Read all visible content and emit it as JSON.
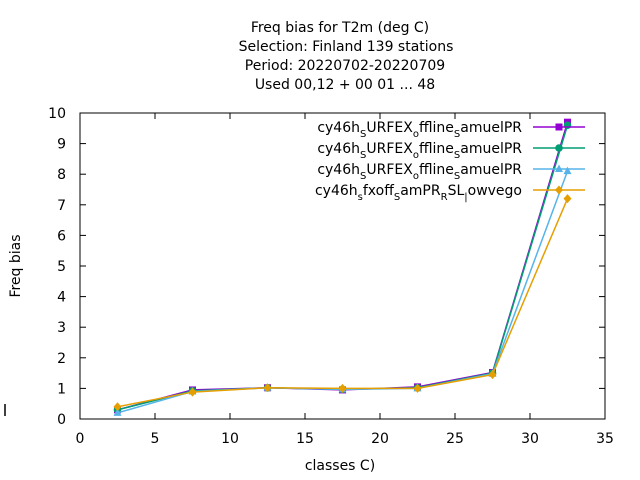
{
  "chart_data": {
    "type": "line",
    "title": [
      "Freq bias  for T2m (deg C)",
      "Selection: Finland     139 stations",
      "Period: 20220702-20220709",
      "Used  00,12  + 00 01 ... 48"
    ],
    "xlabel": "classes C)",
    "ylabel": "Freq bias",
    "xlim": [
      0,
      35
    ],
    "ylim": [
      0,
      10
    ],
    "xticks": [
      0,
      5,
      10,
      15,
      20,
      25,
      30,
      35
    ],
    "yticks": [
      0,
      1,
      2,
      3,
      4,
      5,
      6,
      7,
      8,
      9,
      10
    ],
    "grid": false,
    "legend_position": "top-right",
    "series": [
      {
        "name": "cy46h_SURFEX_offline_SamuelPR",
        "legend_parts": [
          [
            "cy46h",
            ""
          ],
          [
            "S",
            "sub"
          ],
          [
            "URFEX",
            ""
          ],
          [
            "o",
            "sub"
          ],
          [
            "ffline",
            ""
          ],
          [
            "S",
            "sub"
          ],
          [
            "amuelPR",
            ""
          ]
        ],
        "color": "#9400d3",
        "marker": "square",
        "x": [
          2.5,
          7.5,
          12.5,
          17.5,
          22.5,
          27.5,
          32.5
        ],
        "y": [
          0.3,
          0.95,
          1.02,
          0.95,
          1.05,
          1.52,
          9.7
        ]
      },
      {
        "name": "cy46h_SURFEX_offline_SamuelPR",
        "legend_parts": [
          [
            "cy46h",
            ""
          ],
          [
            "S",
            "sub"
          ],
          [
            "URFEX",
            ""
          ],
          [
            "o",
            "sub"
          ],
          [
            "ffline",
            ""
          ],
          [
            "S",
            "sub"
          ],
          [
            "amuelPR",
            ""
          ]
        ],
        "color": "#009e73",
        "marker": "circle",
        "x": [
          2.5,
          7.5,
          12.5,
          17.5,
          22.5,
          27.5,
          32.5
        ],
        "y": [
          0.3,
          0.92,
          1.02,
          0.97,
          1.02,
          1.5,
          9.6
        ]
      },
      {
        "name": "cy46h_SURFEX_offline_SamuelPR",
        "legend_parts": [
          [
            "cy46h",
            ""
          ],
          [
            "S",
            "sub"
          ],
          [
            "URFEX",
            ""
          ],
          [
            "o",
            "sub"
          ],
          [
            "ffline",
            ""
          ],
          [
            "S",
            "sub"
          ],
          [
            "amuelPR",
            ""
          ]
        ],
        "color": "#56b4e9",
        "marker": "triangle",
        "x": [
          2.5,
          7.5,
          12.5,
          17.5,
          22.5,
          27.5,
          32.5
        ],
        "y": [
          0.2,
          0.9,
          1.02,
          0.97,
          1.0,
          1.48,
          8.1
        ]
      },
      {
        "name": "cy46h_sfxoff_SamPR_RSL_lowvego",
        "legend_parts": [
          [
            "cy46h",
            ""
          ],
          [
            "s",
            "sub"
          ],
          [
            "fxoff",
            ""
          ],
          [
            "S",
            "sub"
          ],
          [
            "amPR",
            ""
          ],
          [
            "R",
            "sub"
          ],
          [
            "SL",
            ""
          ],
          [
            "|",
            "sub"
          ],
          [
            "owvego",
            ""
          ]
        ],
        "color": "#e69f00",
        "marker": "diamond",
        "x": [
          2.5,
          7.5,
          12.5,
          17.5,
          22.5,
          27.5,
          32.5
        ],
        "y": [
          0.4,
          0.88,
          1.02,
          1.0,
          1.0,
          1.45,
          7.2
        ]
      }
    ]
  }
}
